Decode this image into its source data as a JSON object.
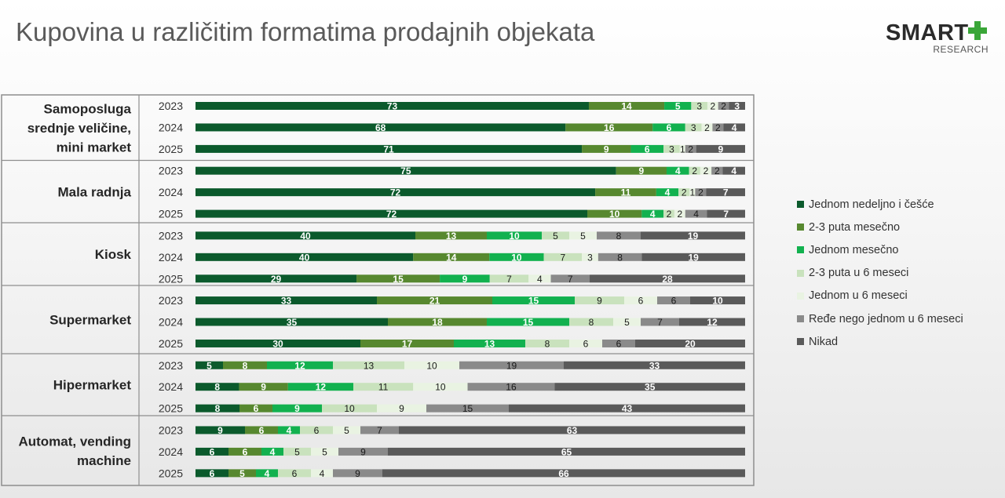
{
  "title": "Kupovina u različitim formatima prodajnih objekata",
  "logo": {
    "word": "SMART",
    "sub": "RESEARCH",
    "accent": "#3aa638"
  },
  "colors": [
    "#0b5a2c",
    "#57882f",
    "#12b14f",
    "#c9e2bd",
    "#e9f3e2",
    "#8a8a8a",
    "#5a5a5a"
  ],
  "chart_data": {
    "type": "bar",
    "orientation": "horizontal",
    "stacked": true,
    "xlim": [
      0,
      100
    ],
    "legend": [
      "Jednom nedeljno i češće",
      "2-3 puta mesečno",
      "Jednom mesečno",
      "2-3 puta u 6 meseci",
      "Jednom u 6 meseci",
      "Ređe nego jednom u 6 meseci",
      "Nikad"
    ],
    "legend_position": "right",
    "groups": [
      {
        "name": "Samoposluga srednje veličine, mini market",
        "years": [
          {
            "year": "2023",
            "values": [
              73,
              14,
              5,
              3,
              2,
              2,
              3
            ]
          },
          {
            "year": "2024",
            "values": [
              68,
              16,
              6,
              3,
              2,
              2,
              4
            ]
          },
          {
            "year": "2025",
            "values": [
              71,
              9,
              6,
              3,
              1,
              2,
              9
            ]
          }
        ]
      },
      {
        "name": "Mala radnja",
        "years": [
          {
            "year": "2023",
            "values": [
              75,
              9,
              4,
              2,
              2,
              2,
              4
            ]
          },
          {
            "year": "2024",
            "values": [
              72,
              11,
              4,
              2,
              1,
              2,
              7
            ]
          },
          {
            "year": "2025",
            "values": [
              72,
              10,
              4,
              2,
              2,
              4,
              7
            ]
          }
        ]
      },
      {
        "name": "Kiosk",
        "years": [
          {
            "year": "2023",
            "values": [
              40,
              13,
              10,
              5,
              5,
              8,
              19
            ]
          },
          {
            "year": "2024",
            "values": [
              40,
              14,
              10,
              7,
              3,
              8,
              19
            ]
          },
          {
            "year": "2025",
            "values": [
              29,
              15,
              9,
              7,
              4,
              7,
              28
            ]
          }
        ]
      },
      {
        "name": "Supermarket",
        "years": [
          {
            "year": "2023",
            "values": [
              33,
              21,
              15,
              9,
              6,
              6,
              10
            ]
          },
          {
            "year": "2024",
            "values": [
              35,
              18,
              15,
              8,
              5,
              7,
              12
            ]
          },
          {
            "year": "2025",
            "values": [
              30,
              17,
              13,
              8,
              6,
              6,
              20
            ]
          }
        ]
      },
      {
        "name": "Hipermarket",
        "years": [
          {
            "year": "2023",
            "values": [
              5,
              8,
              12,
              13,
              10,
              19,
              33
            ]
          },
          {
            "year": "2024",
            "values": [
              8,
              9,
              12,
              11,
              10,
              16,
              35
            ]
          },
          {
            "year": "2025",
            "values": [
              8,
              6,
              9,
              10,
              9,
              15,
              43
            ]
          }
        ]
      },
      {
        "name": "Automat, vending machine",
        "years": [
          {
            "year": "2023",
            "values": [
              9,
              6,
              4,
              6,
              5,
              7,
              63
            ]
          },
          {
            "year": "2024",
            "values": [
              6,
              6,
              4,
              5,
              5,
              9,
              65
            ]
          },
          {
            "year": "2025",
            "values": [
              6,
              5,
              4,
              6,
              4,
              9,
              66
            ]
          }
        ]
      }
    ]
  }
}
